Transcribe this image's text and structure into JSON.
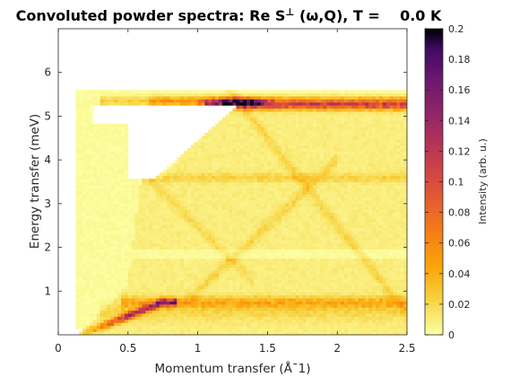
{
  "chart_data": {
    "type": "heatmap",
    "title": "Convoluted powder spectra: Re S",
    "title_sup": "⊥",
    "title_rest": " (ω,Q), T =    0.0 K",
    "xlabel": "Momentum transfer (Å¯1)",
    "ylabel": "Energy transfer (meV)",
    "xlim": [
      0,
      2.5
    ],
    "ylim": [
      0,
      7
    ],
    "x_ticks": [
      0,
      0.5,
      1,
      1.5,
      2,
      2.5
    ],
    "x_tick_labels": [
      "0",
      "0.5",
      "1",
      "1.5",
      "2",
      "2.5"
    ],
    "y_ticks": [
      1,
      2,
      3,
      4,
      5,
      6
    ],
    "y_tick_labels": [
      "1",
      "2",
      "3",
      "4",
      "5",
      "6"
    ],
    "colorbar": {
      "label": "Intensity (arb. u.)",
      "range": [
        0,
        0.2
      ],
      "ticks": [
        0,
        0.02,
        0.04,
        0.06,
        0.08,
        0.1,
        0.12,
        0.14,
        0.16,
        0.18,
        0.2
      ],
      "tick_labels": [
        "0",
        "0.02",
        "0.04",
        "0.06",
        "0.08",
        "0.1",
        "0.12",
        "0.14",
        "0.16",
        "0.18",
        "0.2"
      ],
      "colormap": "inferno_r"
    },
    "features": [
      {
        "name": "upper flat band",
        "energy": 5.35,
        "q_range": [
          0.25,
          2.5
        ],
        "intensity": 0.09
      },
      {
        "name": "upper band intense region",
        "energy": 5.3,
        "q_range": [
          1.05,
          1.5
        ],
        "intensity": 0.16
      },
      {
        "name": "middle band",
        "energy": 3.6,
        "q_range": [
          0.6,
          2.5
        ],
        "intensity": 0.02
      },
      {
        "name": "lower band",
        "energy": 0.75,
        "q_range": [
          0.5,
          2.5
        ],
        "intensity": 0.035
      },
      {
        "name": "low-Q acoustic branch",
        "points": [
          [
            0.15,
            0.0
          ],
          [
            0.4,
            0.35
          ],
          [
            0.6,
            0.7
          ],
          [
            0.75,
            0.75
          ]
        ],
        "intensity": 0.12
      },
      {
        "name": "gap region",
        "energy_range": [
          1.7,
          2.0
        ],
        "intensity": 0.0
      }
    ]
  }
}
